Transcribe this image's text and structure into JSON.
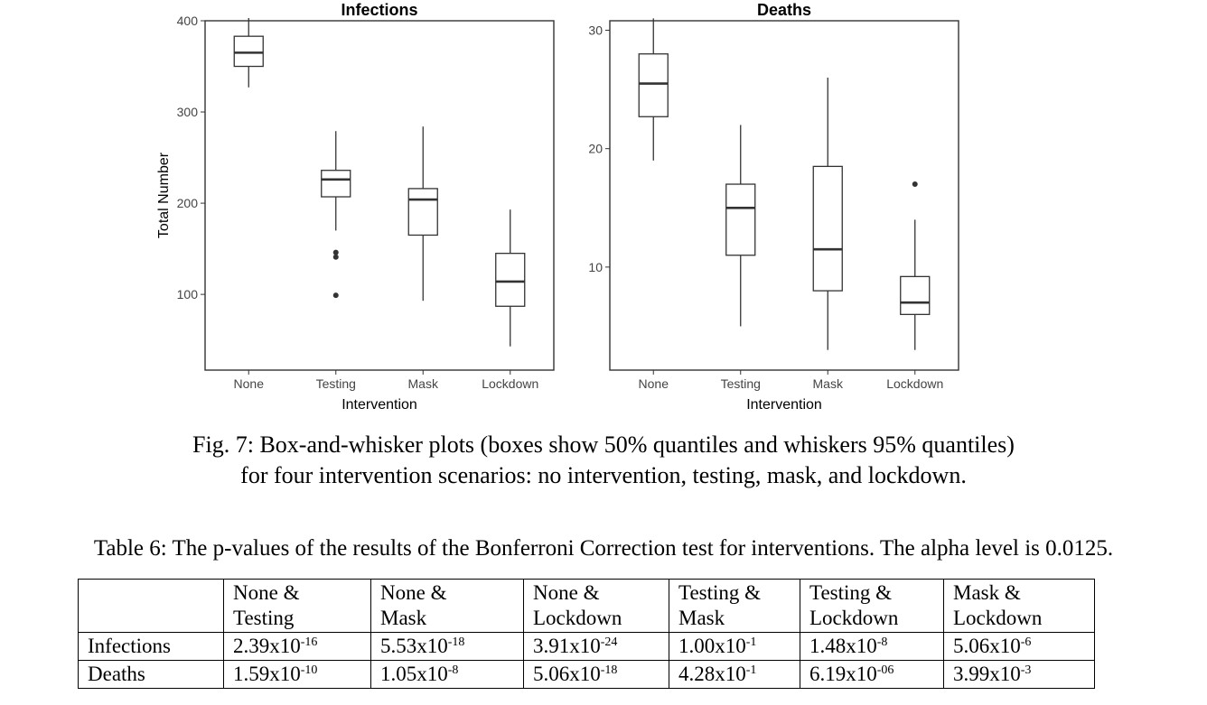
{
  "chart_data": [
    {
      "type": "box",
      "title": "Infections",
      "xlabel": "Intervention",
      "ylabel": "Total Number",
      "ylim": [
        17,
        400
      ],
      "yticks": [
        100,
        200,
        300,
        400
      ],
      "categories": [
        "None",
        "Testing",
        "Mask",
        "Lockdown"
      ],
      "boxes": [
        {
          "whisker_low": 327,
          "q1": 350,
          "median": 365,
          "q3": 383,
          "whisker_high": 403,
          "outliers": []
        },
        {
          "whisker_low": 170,
          "q1": 207,
          "median": 226,
          "q3": 236,
          "whisker_high": 279,
          "outliers": [
            146,
            141,
            99
          ]
        },
        {
          "whisker_low": 93,
          "q1": 165,
          "median": 204,
          "q3": 216,
          "whisker_high": 284,
          "outliers": []
        },
        {
          "whisker_low": 43,
          "q1": 87,
          "median": 114,
          "q3": 145,
          "whisker_high": 193,
          "outliers": []
        }
      ]
    },
    {
      "type": "box",
      "title": "Deaths",
      "xlabel": "Intervention",
      "ylabel": "",
      "ylim": [
        1.3,
        30.8
      ],
      "yticks": [
        10,
        20,
        30
      ],
      "categories": [
        "None",
        "Testing",
        "Mask",
        "Lockdown"
      ],
      "boxes": [
        {
          "whisker_low": 19,
          "q1": 22.7,
          "median": 25.5,
          "q3": 28,
          "whisker_high": 31,
          "outliers": []
        },
        {
          "whisker_low": 5,
          "q1": 11,
          "median": 15,
          "q3": 17,
          "whisker_high": 22,
          "outliers": []
        },
        {
          "whisker_low": 3,
          "q1": 8,
          "median": 11.5,
          "q3": 18.5,
          "whisker_high": 26,
          "outliers": []
        },
        {
          "whisker_low": 3,
          "q1": 6,
          "median": 7,
          "q3": 9.2,
          "whisker_high": 14,
          "outliers": [
            17
          ]
        }
      ]
    }
  ],
  "figure_caption": {
    "line1": "Fig. 7: Box-and-whisker plots (boxes show 50% quantiles and whiskers 95% quantiles)",
    "line2": "for four intervention scenarios: no intervention, testing, mask, and lockdown."
  },
  "table": {
    "caption": "Table 6: The p-values of the results of the Bonferroni Correction test for interventions. The alpha level is 0.0125.",
    "headers": [
      [
        "None &",
        "Testing"
      ],
      [
        "None &",
        "Mask"
      ],
      [
        "None &",
        "Lockdown"
      ],
      [
        "Testing &",
        "Mask"
      ],
      [
        "Testing &",
        "Lockdown"
      ],
      [
        "Mask &",
        "Lockdown"
      ]
    ],
    "rows": [
      {
        "label": "Infections",
        "cells": [
          [
            "2.39x10",
            "-16"
          ],
          [
            "5.53x10",
            "-18"
          ],
          [
            "3.91x10",
            "-24"
          ],
          [
            "1.00x10",
            "-1"
          ],
          [
            "1.48x10",
            "-8"
          ],
          [
            "5.06x10",
            "-6"
          ]
        ]
      },
      {
        "label": "Deaths",
        "cells": [
          [
            "1.59x10",
            "-10"
          ],
          [
            "1.05x10",
            "-8"
          ],
          [
            "5.06x10",
            "-18"
          ],
          [
            "4.28x10",
            "-1"
          ],
          [
            "6.19x10",
            "-06"
          ],
          [
            "3.99x10",
            "-3"
          ]
        ]
      }
    ]
  }
}
